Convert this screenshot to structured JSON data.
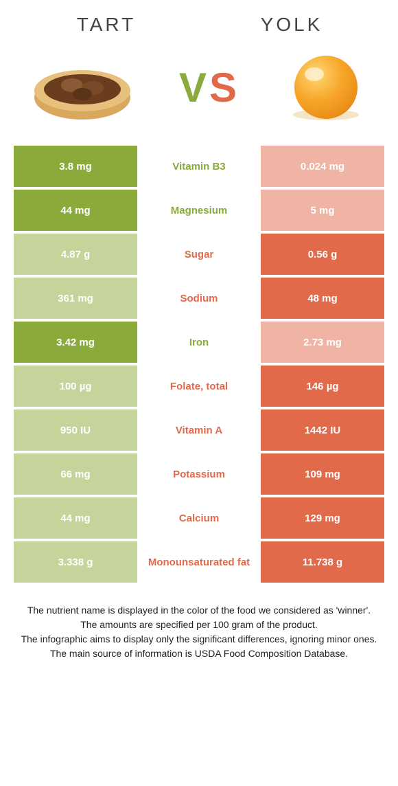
{
  "header": {
    "left_title": "TART",
    "right_title": "YOLK",
    "vs_left": "V",
    "vs_right": "S"
  },
  "colors": {
    "green": "#8aaa3b",
    "orange": "#e06a4a",
    "fade_green": "#c4d49a",
    "fade_orange": "#efb4a3",
    "white": "#ffffff"
  },
  "rows": [
    {
      "left": "3.8 mg",
      "mid": "Vitamin B3",
      "right": "0.024 mg",
      "winner": "left"
    },
    {
      "left": "44 mg",
      "mid": "Magnesium",
      "right": "5 mg",
      "winner": "left"
    },
    {
      "left": "4.87 g",
      "mid": "Sugar",
      "right": "0.56 g",
      "winner": "right"
    },
    {
      "left": "361 mg",
      "mid": "Sodium",
      "right": "48 mg",
      "winner": "right"
    },
    {
      "left": "3.42 mg",
      "mid": "Iron",
      "right": "2.73 mg",
      "winner": "left"
    },
    {
      "left": "100 µg",
      "mid": "Folate, total",
      "right": "146 µg",
      "winner": "right"
    },
    {
      "left": "950 IU",
      "mid": "Vitamin A",
      "right": "1442 IU",
      "winner": "right"
    },
    {
      "left": "66 mg",
      "mid": "Potassium",
      "right": "109 mg",
      "winner": "right"
    },
    {
      "left": "44 mg",
      "mid": "Calcium",
      "right": "129 mg",
      "winner": "right"
    },
    {
      "left": "3.338 g",
      "mid": "Monounsaturated fat",
      "right": "11.738 g",
      "winner": "right"
    }
  ],
  "footnote": {
    "line1": "The nutrient name is displayed in the color of the food we considered as 'winner'.",
    "line2": "The amounts are specified per 100 gram of the product.",
    "line3": "The infographic aims to display only the significant differences, ignoring minor ones.",
    "line4": "The main source of information is USDA Food Composition Database."
  }
}
